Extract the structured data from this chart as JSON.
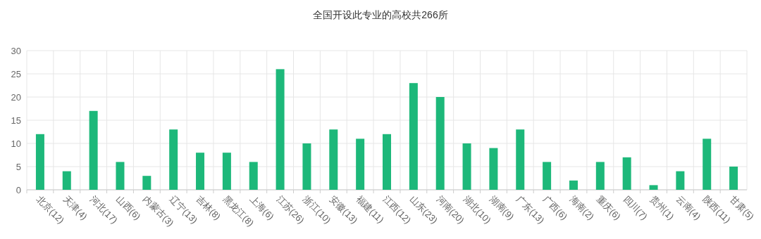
{
  "chart_data": {
    "type": "bar",
    "title": "全国开设此专业的高校共266所",
    "categories": [
      "北京(12)",
      "天津(4)",
      "河北(17)",
      "山西(6)",
      "内蒙古(3)",
      "辽宁(13)",
      "吉林(8)",
      "黑龙江(8)",
      "上海(6)",
      "江苏(26)",
      "浙江(10)",
      "安徽(13)",
      "福建(11)",
      "江西(12)",
      "山东(23)",
      "河南(20)",
      "湖北(10)",
      "湖南(9)",
      "广东(13)",
      "广西(6)",
      "海南(2)",
      "重庆(6)",
      "四川(7)",
      "贵州(1)",
      "云南(4)",
      "陕西(11)",
      "甘肃(5)"
    ],
    "values": [
      12,
      4,
      17,
      6,
      3,
      13,
      8,
      8,
      6,
      26,
      10,
      13,
      11,
      12,
      23,
      20,
      10,
      9,
      13,
      6,
      2,
      6,
      7,
      1,
      4,
      11,
      5
    ],
    "color": "#1db87a",
    "ylim": [
      0,
      30
    ],
    "yticks": [
      0,
      5,
      10,
      15,
      20,
      25,
      30
    ],
    "grid": true
  }
}
